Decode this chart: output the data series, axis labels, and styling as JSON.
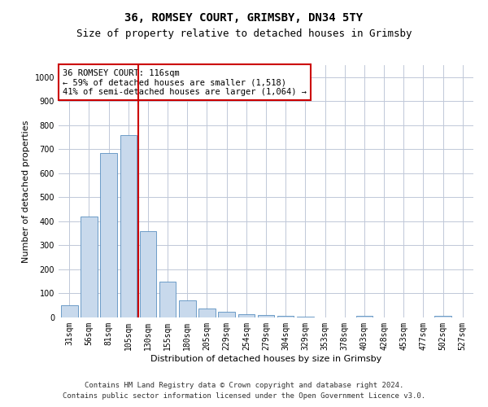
{
  "title": "36, ROMSEY COURT, GRIMSBY, DN34 5TY",
  "subtitle": "Size of property relative to detached houses in Grimsby",
  "xlabel": "Distribution of detached houses by size in Grimsby",
  "ylabel": "Number of detached properties",
  "categories": [
    "31sqm",
    "56sqm",
    "81sqm",
    "105sqm",
    "130sqm",
    "155sqm",
    "180sqm",
    "205sqm",
    "229sqm",
    "254sqm",
    "279sqm",
    "304sqm",
    "329sqm",
    "353sqm",
    "378sqm",
    "403sqm",
    "428sqm",
    "453sqm",
    "477sqm",
    "502sqm",
    "527sqm"
  ],
  "values": [
    50,
    420,
    685,
    760,
    360,
    150,
    70,
    37,
    25,
    15,
    10,
    7,
    5,
    0,
    0,
    8,
    0,
    0,
    0,
    8,
    0
  ],
  "bar_color": "#c8d9ec",
  "bar_edge_color": "#5a8fc0",
  "red_line_x": 3.5,
  "annotation_title": "36 ROMSEY COURT: 116sqm",
  "annotation_line1": "← 59% of detached houses are smaller (1,518)",
  "annotation_line2": "41% of semi-detached houses are larger (1,064) →",
  "annotation_box_color": "#ffffff",
  "annotation_box_edge": "#cc0000",
  "red_line_color": "#cc0000",
  "ylim": [
    0,
    1050
  ],
  "yticks": [
    0,
    100,
    200,
    300,
    400,
    500,
    600,
    700,
    800,
    900,
    1000
  ],
  "footer1": "Contains HM Land Registry data © Crown copyright and database right 2024.",
  "footer2": "Contains public sector information licensed under the Open Government Licence v3.0.",
  "title_fontsize": 10,
  "subtitle_fontsize": 9,
  "axis_label_fontsize": 8,
  "tick_fontsize": 7,
  "annotation_fontsize": 7.5,
  "footer_fontsize": 6.5,
  "background_color": "#ffffff",
  "grid_color": "#c0c8d8"
}
